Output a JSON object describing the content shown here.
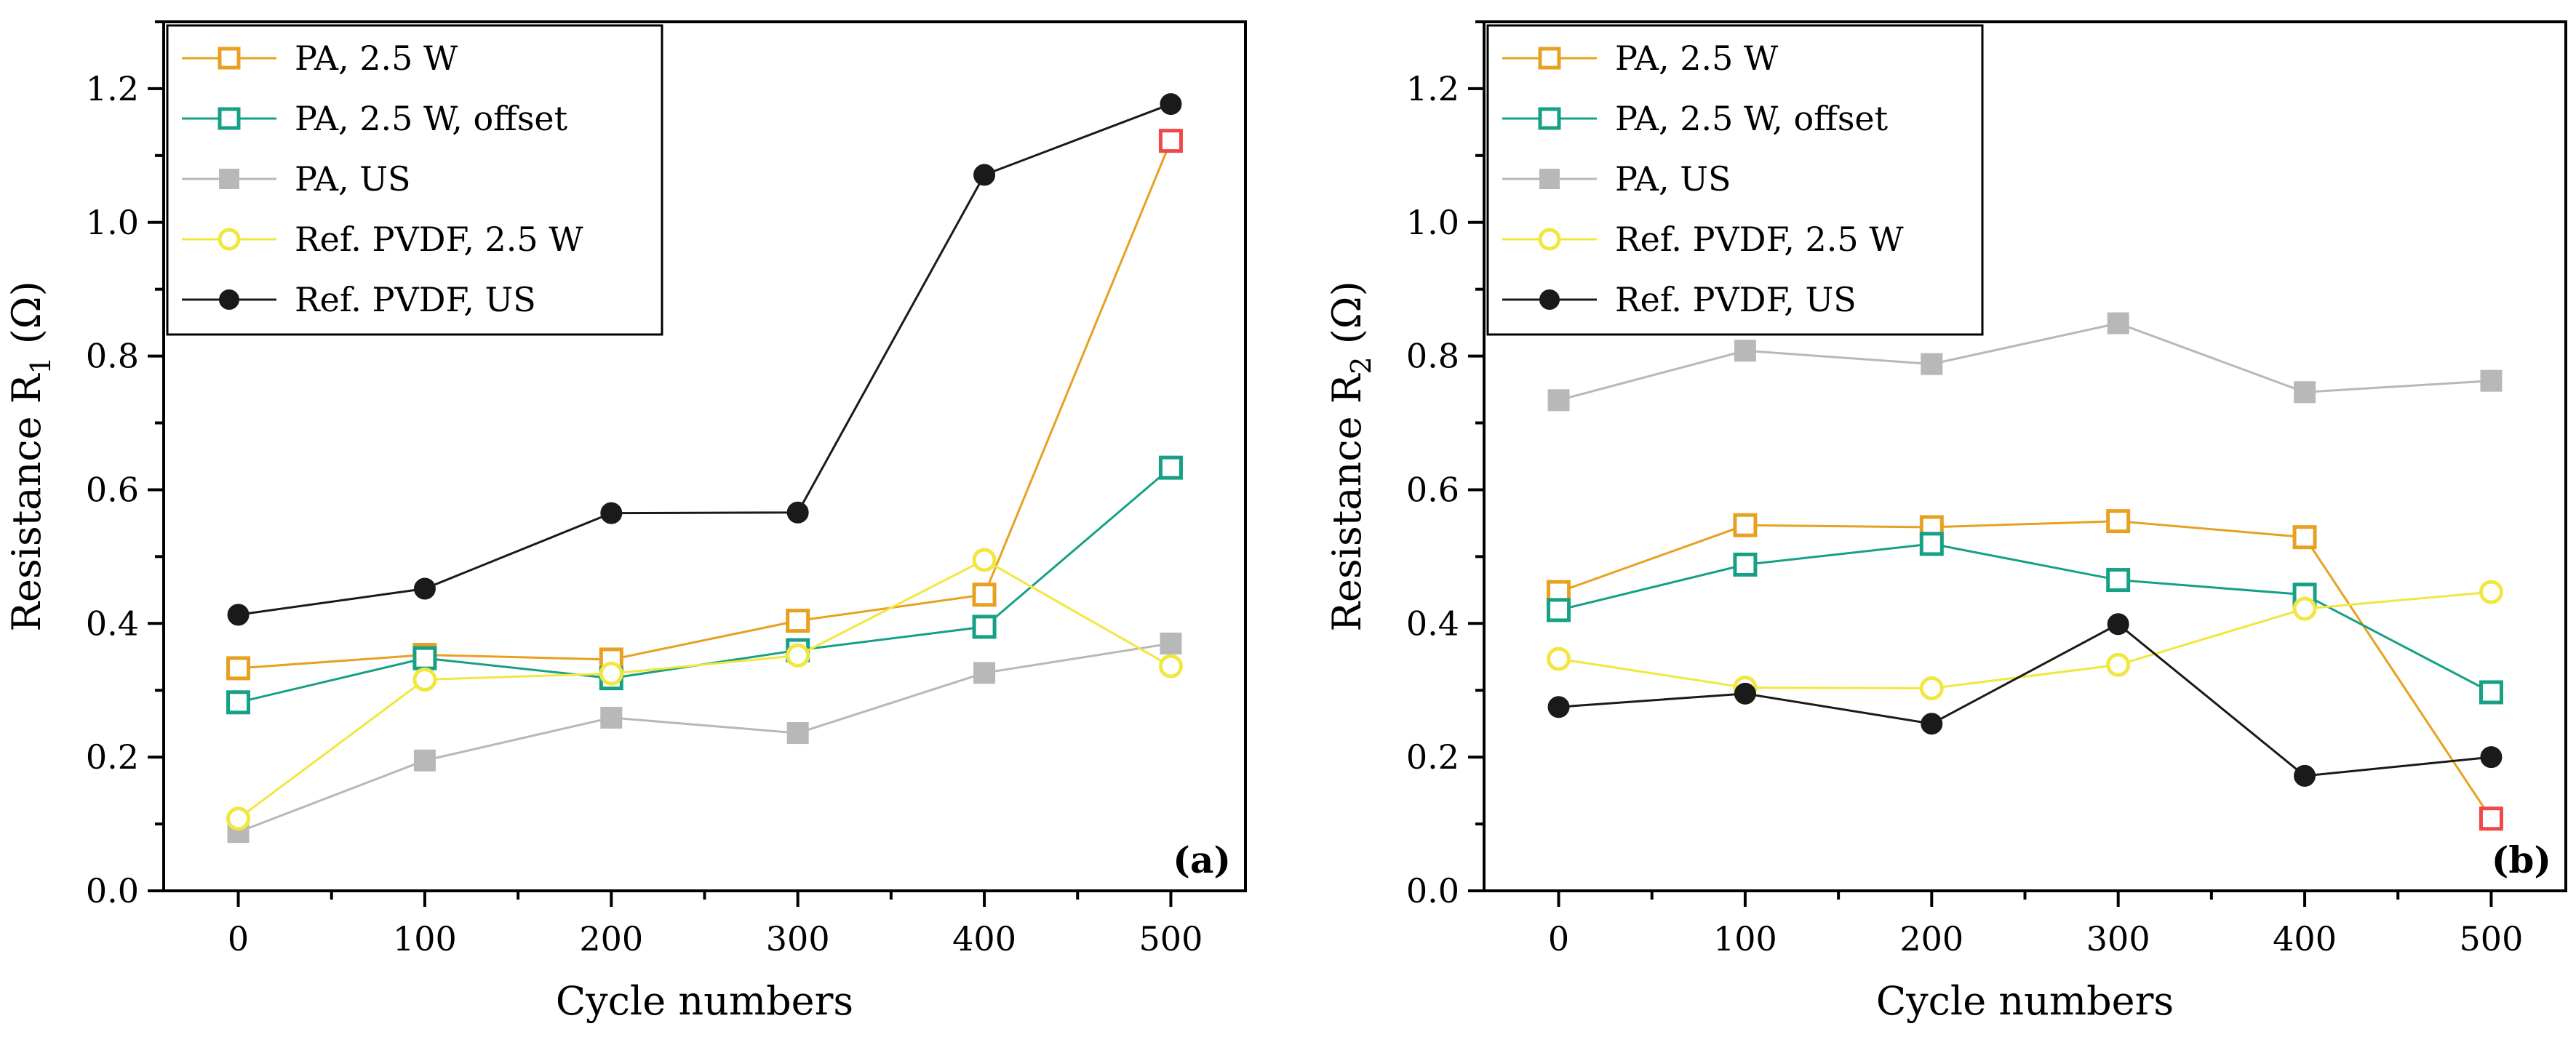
{
  "chart_data": [
    {
      "type": "line",
      "panel": "(a)",
      "x": [
        0,
        100,
        200,
        300,
        400,
        500
      ],
      "xlabel": "Cycle numbers",
      "ylabel_main": "Resistance R",
      "ylabel_sub": "1",
      "ylabel_unit": " (Ω)",
      "xlim": [
        -40,
        540
      ],
      "ylim": [
        0,
        1.3
      ],
      "xticks": [
        0,
        100,
        200,
        300,
        400,
        500
      ],
      "yticks": [
        0.0,
        0.2,
        0.4,
        0.6,
        0.8,
        1.0,
        1.2
      ],
      "legend_position": "top-left",
      "series": [
        {
          "name": "PA, 2.5 W",
          "color": "#E8A020",
          "marker": "open-square",
          "values": [
            0.333,
            0.353,
            0.346,
            0.404,
            0.443,
            1.122
          ]
        },
        {
          "name": "PA, 2.5 W, offset",
          "color": "#16A085",
          "marker": "open-square",
          "values": [
            0.282,
            0.348,
            0.318,
            0.36,
            0.395,
            0.633
          ]
        },
        {
          "name": "PA, US",
          "color": "#B8B8B8",
          "marker": "filled-square",
          "values": [
            0.088,
            0.195,
            0.259,
            0.236,
            0.326,
            0.37
          ]
        },
        {
          "name": "Ref. PVDF, 2.5 W",
          "color": "#F2E640",
          "marker": "open-circle",
          "values": [
            0.108,
            0.316,
            0.325,
            0.352,
            0.495,
            0.336
          ]
        },
        {
          "name": "Ref. PVDF, US",
          "color": "#1A1A1A",
          "marker": "filled-circle",
          "values": [
            0.413,
            0.452,
            0.565,
            0.566,
            1.071,
            1.177
          ]
        }
      ],
      "highlight": {
        "series": 0,
        "point": 5,
        "color": "#F04848"
      }
    },
    {
      "type": "line",
      "panel": "(b)",
      "x": [
        0,
        100,
        200,
        300,
        400,
        500
      ],
      "xlabel": "Cycle numbers",
      "ylabel_main": "Resistance R",
      "ylabel_sub": "2",
      "ylabel_unit": " (Ω)",
      "xlim": [
        -40,
        540
      ],
      "ylim": [
        0,
        1.3
      ],
      "xticks": [
        0,
        100,
        200,
        300,
        400,
        500
      ],
      "yticks": [
        0.0,
        0.2,
        0.4,
        0.6,
        0.8,
        1.0,
        1.2
      ],
      "legend_position": "top-left",
      "series": [
        {
          "name": "PA, 2.5 W",
          "color": "#E8A020",
          "marker": "open-square",
          "values": [
            0.447,
            0.547,
            0.544,
            0.553,
            0.529,
            0.108
          ]
        },
        {
          "name": "PA, 2.5 W, offset",
          "color": "#16A085",
          "marker": "open-square",
          "values": [
            0.42,
            0.488,
            0.519,
            0.465,
            0.443,
            0.297
          ]
        },
        {
          "name": "PA, US",
          "color": "#B8B8B8",
          "marker": "filled-square",
          "values": [
            0.734,
            0.808,
            0.788,
            0.849,
            0.746,
            0.763
          ]
        },
        {
          "name": "Ref. PVDF, 2.5 W",
          "color": "#F2E640",
          "marker": "open-circle",
          "values": [
            0.347,
            0.304,
            0.303,
            0.338,
            0.422,
            0.447
          ]
        },
        {
          "name": "Ref. PVDF, US",
          "color": "#1A1A1A",
          "marker": "filled-circle",
          "values": [
            0.275,
            0.295,
            0.25,
            0.399,
            0.172,
            0.2
          ]
        }
      ],
      "highlight": {
        "series": 0,
        "point": 5,
        "color": "#F04848"
      }
    }
  ]
}
